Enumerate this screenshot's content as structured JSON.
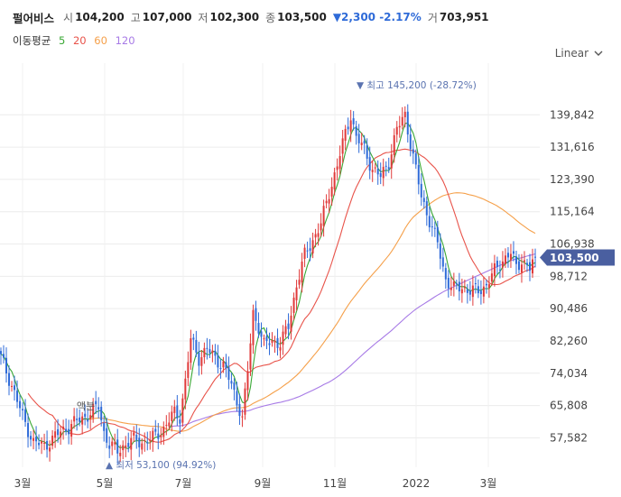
{
  "header": {
    "name": "펄어비스",
    "open_label": "시",
    "open": "104,200",
    "high_label": "고",
    "high": "107,000",
    "low_label": "저",
    "low": "102,300",
    "close_label": "종",
    "close": "103,500",
    "change": "▼2,300 -2.17%",
    "volume_label": "거",
    "volume": "703,951"
  },
  "ma_legend": {
    "label": "이동평균",
    "p5": "5",
    "p20": "20",
    "p60": "60",
    "p120": "120",
    "colors": {
      "p5": "#3aa835",
      "p20": "#e8534a",
      "p60": "#f5a04a",
      "p120": "#a77ae6"
    }
  },
  "scale_selector": {
    "label": "Linear",
    "icon": "chevron-down-icon"
  },
  "colors": {
    "up": "#e03a3a",
    "down": "#2f6bd8",
    "price_tag": "#4a5fa0",
    "annotation": "#5a73b0"
  },
  "chart_data": {
    "type": "candlestick",
    "y_ticks": [
      "139,842",
      "131,616",
      "123,390",
      "115,164",
      "106,938",
      "98,712",
      "90,486",
      "82,260",
      "74,034",
      "65,808",
      "57,582"
    ],
    "y_tick_values": [
      139842,
      131616,
      123390,
      115164,
      106938,
      98712,
      90486,
      82260,
      74034,
      65808,
      57582
    ],
    "x_ticks": [
      "3월",
      "5월",
      "7월",
      "9월",
      "11월",
      "2022",
      "3월"
    ],
    "ylim": [
      50100,
      150700
    ],
    "current_price": "103,500",
    "current_value": 103500,
    "high_annotation": "최고 145,200 (-28.72%)",
    "low_annotation": "최저 53,100 (94.92%)",
    "event_marker": "액분",
    "price_path": [
      [
        0,
        78000
      ],
      [
        4,
        71000
      ],
      [
        8,
        63000
      ],
      [
        12,
        56500
      ],
      [
        16,
        55500
      ],
      [
        20,
        58000
      ],
      [
        26,
        61000
      ],
      [
        30,
        62500
      ],
      [
        33,
        64000
      ],
      [
        36,
        65500
      ],
      [
        38,
        59000
      ],
      [
        40,
        56000
      ],
      [
        43,
        54000
      ],
      [
        45,
        55500
      ],
      [
        48,
        57000
      ],
      [
        52,
        56500
      ],
      [
        56,
        57500
      ],
      [
        60,
        60000
      ],
      [
        64,
        64000
      ],
      [
        66,
        63000
      ],
      [
        68,
        72000
      ],
      [
        70,
        82500
      ],
      [
        73,
        78000
      ],
      [
        76,
        80000
      ],
      [
        79,
        78000
      ],
      [
        82,
        76000
      ],
      [
        85,
        71000
      ],
      [
        88,
        65000
      ],
      [
        89,
        62500
      ],
      [
        91,
        74500
      ],
      [
        93,
        89500
      ],
      [
        95,
        86000
      ],
      [
        97,
        81000
      ],
      [
        100,
        82500
      ],
      [
        103,
        81500
      ],
      [
        106,
        86000
      ],
      [
        109,
        96500
      ],
      [
        112,
        104000
      ],
      [
        115,
        108000
      ],
      [
        118,
        112000
      ],
      [
        121,
        120000
      ],
      [
        124,
        127000
      ],
      [
        127,
        135000
      ],
      [
        129,
        140000
      ],
      [
        131,
        134000
      ],
      [
        134,
        131000
      ],
      [
        137,
        126000
      ],
      [
        140,
        124000
      ],
      [
        143,
        128000
      ],
      [
        146,
        136000
      ],
      [
        149,
        140000
      ],
      [
        152,
        129000
      ],
      [
        155,
        119000
      ],
      [
        158,
        113000
      ],
      [
        161,
        107000
      ],
      [
        164,
        98000
      ],
      [
        167,
        95500
      ],
      [
        170,
        96000
      ],
      [
        173,
        95000
      ],
      [
        176,
        95000
      ],
      [
        179,
        96500
      ],
      [
        182,
        100000
      ],
      [
        185,
        103000
      ],
      [
        188,
        104500
      ],
      [
        190,
        101000
      ],
      [
        192,
        103000
      ],
      [
        195,
        100500
      ],
      [
        196,
        102000
      ],
      [
        197,
        103500
      ]
    ]
  }
}
